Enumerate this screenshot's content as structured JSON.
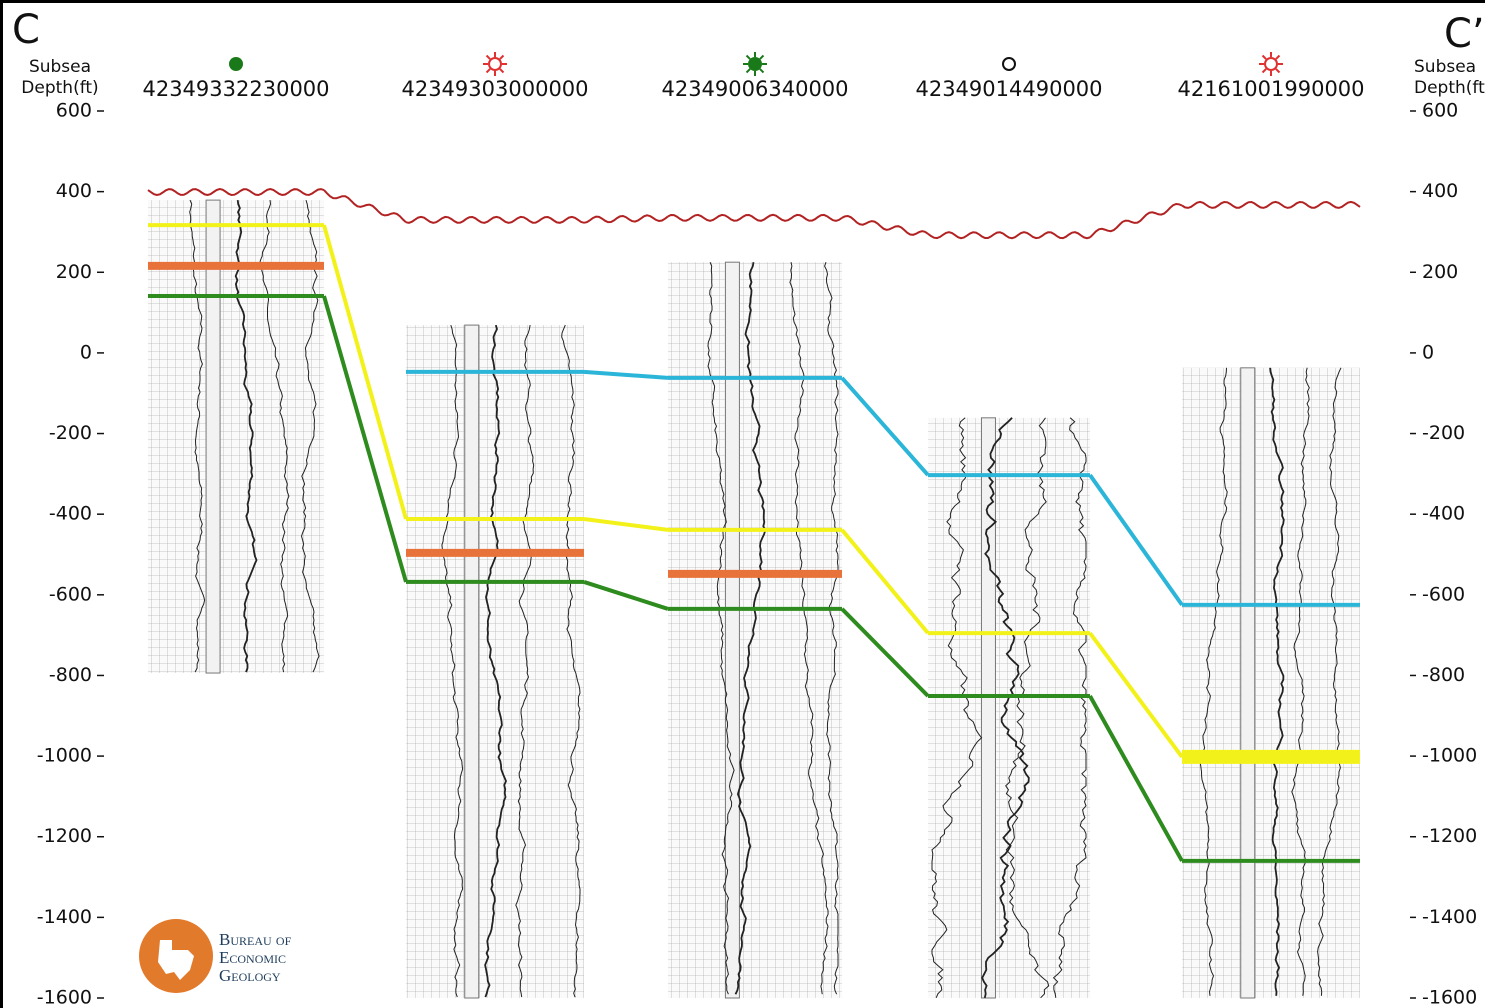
{
  "corner_labels": {
    "left": "C",
    "right": "C’"
  },
  "depth_axis": {
    "label": [
      "Subsea",
      "Depth(ft)"
    ],
    "lim": [
      600,
      -1600
    ],
    "ticks": [
      600,
      400,
      200,
      0,
      -200,
      -400,
      -600,
      -800,
      -1000,
      -1200,
      -1400,
      -1600
    ]
  },
  "wells": [
    {
      "id": "42349332230000",
      "log_top": 379,
      "log_base": -794
    },
    {
      "id": "42349303000000",
      "log_top": 69,
      "log_base": -1600
    },
    {
      "id": "42349006340000",
      "log_top": 225,
      "log_base": -1600
    },
    {
      "id": "42349014490000",
      "log_top": -161,
      "log_base": -1600
    },
    {
      "id": "42161001990000",
      "log_top": -37,
      "log_base": -1600
    }
  ],
  "surface": {
    "color": "#b22222",
    "depths": [
      399,
      330,
      335,
      292,
      367
    ]
  },
  "horizons": [
    {
      "color": "#2bb5d8",
      "depths": [
        null,
        -47,
        -62,
        -303,
        -625
      ]
    },
    {
      "color": "#f2f21a",
      "depths": [
        317,
        -412,
        -439,
        -695,
        -1002
      ]
    },
    {
      "color": "#e8733a",
      "depths": [
        216,
        -496,
        -548,
        null,
        null
      ]
    },
    {
      "color": "#2e8b1e",
      "depths": [
        141,
        -568,
        -635,
        -851,
        -1260
      ]
    }
  ],
  "logo": [
    "Bureau of",
    "Economic",
    "Geology"
  ]
}
